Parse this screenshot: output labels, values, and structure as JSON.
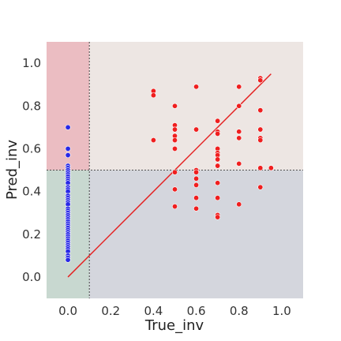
{
  "chart_data": {
    "type": "scatter",
    "title": "",
    "xlabel": "True_inv",
    "ylabel": "Pred_inv",
    "xlim": [
      -0.1,
      1.1
    ],
    "ylim": [
      -0.1,
      1.1
    ],
    "grid": false,
    "x_ticks": [
      "0.0",
      "0.2",
      "0.4",
      "0.6",
      "0.8",
      "1.0"
    ],
    "y_ticks": [
      "0.0",
      "0.2",
      "0.4",
      "0.6",
      "0.8",
      "1.0"
    ],
    "threshold_x": 0.1,
    "threshold_y": 0.5,
    "regions": [
      {
        "quadrant": "upper-left",
        "color": "#ebbdc2"
      },
      {
        "quadrant": "upper-right",
        "color": "#ede6e3"
      },
      {
        "quadrant": "lower-left",
        "color": "#c8d8d0"
      },
      {
        "quadrant": "lower-right",
        "color": "#d4d6dd"
      }
    ],
    "identity_line": {
      "from": [
        0.0,
        0.0
      ],
      "to": [
        0.95,
        0.95
      ],
      "color": "#e52222"
    },
    "series": [
      {
        "color": "#2828e6",
        "x": [
          0,
          0,
          0,
          0,
          0,
          0,
          0,
          0,
          0,
          0,
          0,
          0,
          0,
          0,
          0,
          0,
          0,
          0,
          0,
          0,
          0,
          0,
          0,
          0,
          0,
          0,
          0,
          0,
          0,
          0,
          0,
          0,
          0,
          0,
          0,
          0,
          0,
          0,
          0,
          0,
          0,
          0,
          0,
          0
        ],
        "y": [
          0.7,
          0.6,
          0.57,
          0.52,
          0.51,
          0.5,
          0.49,
          0.48,
          0.47,
          0.46,
          0.45,
          0.44,
          0.42,
          0.41,
          0.4,
          0.38,
          0.37,
          0.36,
          0.35,
          0.34,
          0.32,
          0.31,
          0.3,
          0.29,
          0.28,
          0.27,
          0.26,
          0.25,
          0.24,
          0.23,
          0.22,
          0.21,
          0.2,
          0.19,
          0.18,
          0.17,
          0.16,
          0.15,
          0.14,
          0.13,
          0.12,
          0.1,
          0.09,
          0.08
        ]
      },
      {
        "color": "#ef1f1f",
        "x": [
          0.4,
          0.4,
          0.4,
          0.5,
          0.5,
          0.5,
          0.5,
          0.5,
          0.5,
          0.5,
          0.5,
          0.5,
          0.6,
          0.6,
          0.6,
          0.6,
          0.6,
          0.6,
          0.6,
          0.6,
          0.7,
          0.7,
          0.7,
          0.7,
          0.7,
          0.7,
          0.7,
          0.7,
          0.7,
          0.7,
          0.7,
          0.7,
          0.8,
          0.8,
          0.8,
          0.8,
          0.8,
          0.8,
          0.9,
          0.9,
          0.9,
          0.9,
          0.9,
          0.9,
          0.9,
          0.9,
          0.95
        ],
        "y": [
          0.87,
          0.85,
          0.64,
          0.8,
          0.71,
          0.69,
          0.66,
          0.64,
          0.6,
          0.49,
          0.41,
          0.33,
          0.89,
          0.69,
          0.5,
          0.46,
          0.43,
          0.37,
          0.32,
          0.49,
          0.73,
          0.68,
          0.67,
          0.6,
          0.58,
          0.57,
          0.55,
          0.52,
          0.44,
          0.37,
          0.29,
          0.28,
          0.89,
          0.8,
          0.68,
          0.65,
          0.53,
          0.34,
          0.93,
          0.92,
          0.78,
          0.69,
          0.65,
          0.64,
          0.51,
          0.42,
          0.51
        ]
      }
    ]
  }
}
